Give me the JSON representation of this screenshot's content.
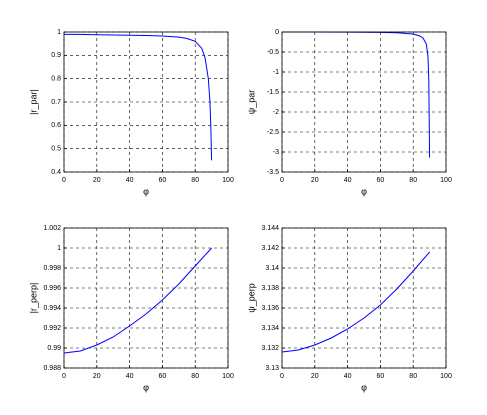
{
  "chart_data": [
    {
      "type": "line",
      "xlabel": "φ",
      "ylabel": "|r_par|",
      "color": "#0000ff",
      "grid": true,
      "x": [
        0,
        10,
        20,
        30,
        40,
        50,
        60,
        70,
        75,
        80,
        84,
        86,
        88,
        89,
        89.5,
        90
      ],
      "values": [
        0.99,
        0.99,
        0.988,
        0.987,
        0.986,
        0.985,
        0.983,
        0.978,
        0.972,
        0.96,
        0.93,
        0.89,
        0.8,
        0.7,
        0.6,
        0.45
      ],
      "xlim": [
        0,
        100
      ],
      "xticks": [
        0,
        20,
        40,
        60,
        80,
        100
      ],
      "ylim": [
        0.4,
        1
      ],
      "yticks": [
        0.4,
        0.5,
        0.6,
        0.7,
        0.8,
        0.9,
        1
      ]
    },
    {
      "type": "line",
      "xlabel": "φ",
      "ylabel": "ψ_par",
      "color": "#0000ff",
      "grid": true,
      "x": [
        0,
        20,
        40,
        60,
        70,
        80,
        84,
        86,
        88,
        89,
        89.5,
        90
      ],
      "values": [
        0,
        -0.001,
        -0.003,
        -0.01,
        -0.02,
        -0.05,
        -0.1,
        -0.15,
        -0.3,
        -0.6,
        -1.2,
        -3.14
      ],
      "xlim": [
        0,
        100
      ],
      "xticks": [
        0,
        20,
        40,
        60,
        80,
        100
      ],
      "ylim": [
        -3.5,
        0
      ],
      "yticks": [
        -3.5,
        -3,
        -2.5,
        -2,
        -1.5,
        -1,
        -0.5,
        0
      ]
    },
    {
      "type": "line",
      "xlabel": "φ",
      "ylabel": "|r_perp|",
      "color": "#0000ff",
      "grid": true,
      "x": [
        0,
        10,
        20,
        30,
        40,
        50,
        60,
        70,
        80,
        90
      ],
      "values": [
        0.9895,
        0.9897,
        0.9903,
        0.9911,
        0.9922,
        0.9934,
        0.9948,
        0.9964,
        0.9982,
        1.0
      ],
      "xlim": [
        0,
        100
      ],
      "xticks": [
        0,
        20,
        40,
        60,
        80,
        100
      ],
      "ylim": [
        0.988,
        1.002
      ],
      "yticks": [
        0.988,
        0.99,
        0.992,
        0.994,
        0.996,
        0.998,
        1,
        1.002
      ]
    },
    {
      "type": "line",
      "xlabel": "φ",
      "ylabel": "ψ_perp",
      "color": "#0000ff",
      "grid": true,
      "x": [
        0,
        10,
        20,
        30,
        40,
        50,
        60,
        70,
        80,
        90
      ],
      "values": [
        3.1316,
        3.1318,
        3.1323,
        3.133,
        3.1339,
        3.135,
        3.1363,
        3.1379,
        3.1397,
        3.1416
      ],
      "xlim": [
        0,
        100
      ],
      "xticks": [
        0,
        20,
        40,
        60,
        80,
        100
      ],
      "ylim": [
        3.13,
        3.144
      ],
      "yticks": [
        3.13,
        3.132,
        3.134,
        3.136,
        3.138,
        3.14,
        3.142,
        3.144
      ]
    }
  ]
}
